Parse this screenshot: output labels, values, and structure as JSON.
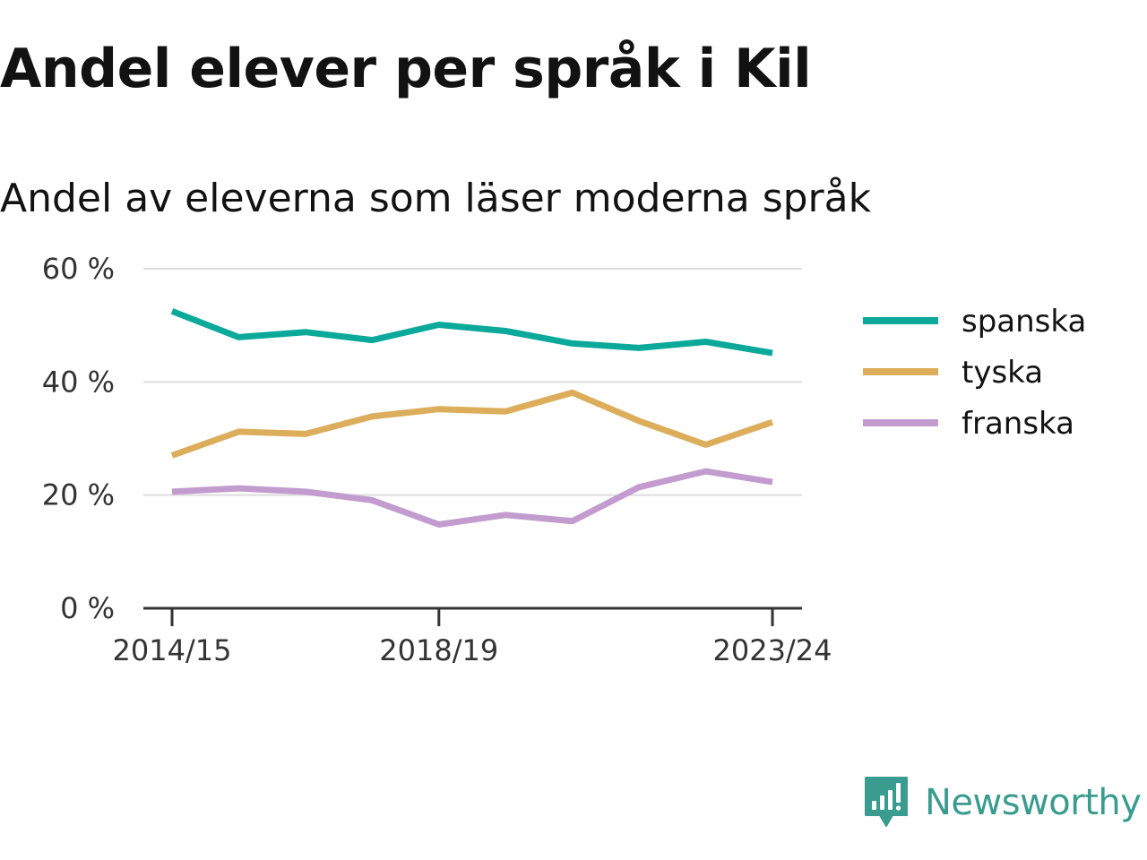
{
  "chart_data": {
    "type": "line",
    "title": "Andel elever per språk i Kil",
    "subtitle": "Andel av eleverna som läser moderna språk",
    "x": [
      "2014/15",
      "2015/16",
      "2016/17",
      "2017/18",
      "2018/19",
      "2019/20",
      "2020/21",
      "2021/22",
      "2022/23",
      "2023/24"
    ],
    "x_tick_labels": [
      "2014/15",
      "2018/19",
      "2023/24"
    ],
    "y_ticks": [
      0,
      20,
      40,
      60
    ],
    "y_tick_labels": [
      "0 %",
      "20 %",
      "40 %",
      "60 %"
    ],
    "ylim": [
      0,
      60
    ],
    "grid": true,
    "legend_position": "right",
    "series": [
      {
        "name": "spanska",
        "color": "#0ba99a",
        "values": [
          52.5,
          47.9,
          48.8,
          47.4,
          50.1,
          49.0,
          46.8,
          46.0,
          47.1,
          45.1
        ]
      },
      {
        "name": "tyska",
        "color": "#dcad5a",
        "values": [
          27.0,
          31.2,
          30.8,
          33.9,
          35.2,
          34.8,
          38.1,
          33.1,
          28.9,
          32.9
        ]
      },
      {
        "name": "franska",
        "color": "#c29ccf",
        "values": [
          20.6,
          21.2,
          20.6,
          19.1,
          14.8,
          16.5,
          15.4,
          21.4,
          24.2,
          22.3
        ]
      }
    ]
  },
  "brand": {
    "name": "Newsworthy",
    "color": "#3a9b8f",
    "icon": "newsworthy-logo-icon"
  }
}
